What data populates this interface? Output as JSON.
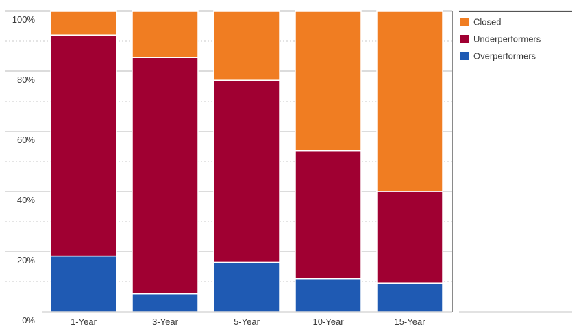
{
  "chart_data": {
    "type": "bar",
    "stacked": true,
    "categories": [
      "1-Year",
      "3-Year",
      "5-Year",
      "10-Year",
      "15-Year"
    ],
    "series": [
      {
        "name": "Overperformers",
        "color": "#1f5ab3",
        "values": [
          18.5,
          6,
          16.5,
          11,
          9.5
        ]
      },
      {
        "name": "Underperformers",
        "color": "#a00032",
        "values": [
          73.5,
          78.5,
          60.5,
          42.5,
          30.5
        ]
      },
      {
        "name": "Closed",
        "color": "#f07d22",
        "values": [
          8,
          15.5,
          23,
          46.5,
          60
        ]
      }
    ],
    "ylim": [
      0,
      100
    ],
    "yticks": [
      0,
      20,
      40,
      60,
      80,
      100
    ],
    "ytick_labels": [
      "0%",
      "20%",
      "40%",
      "60%",
      "80%",
      "100%"
    ],
    "grid": true,
    "legend": {
      "placement": "top-right",
      "order": [
        "Closed",
        "Underperformers",
        "Overperformers"
      ]
    },
    "title": "",
    "xlabel": "",
    "ylabel": ""
  }
}
